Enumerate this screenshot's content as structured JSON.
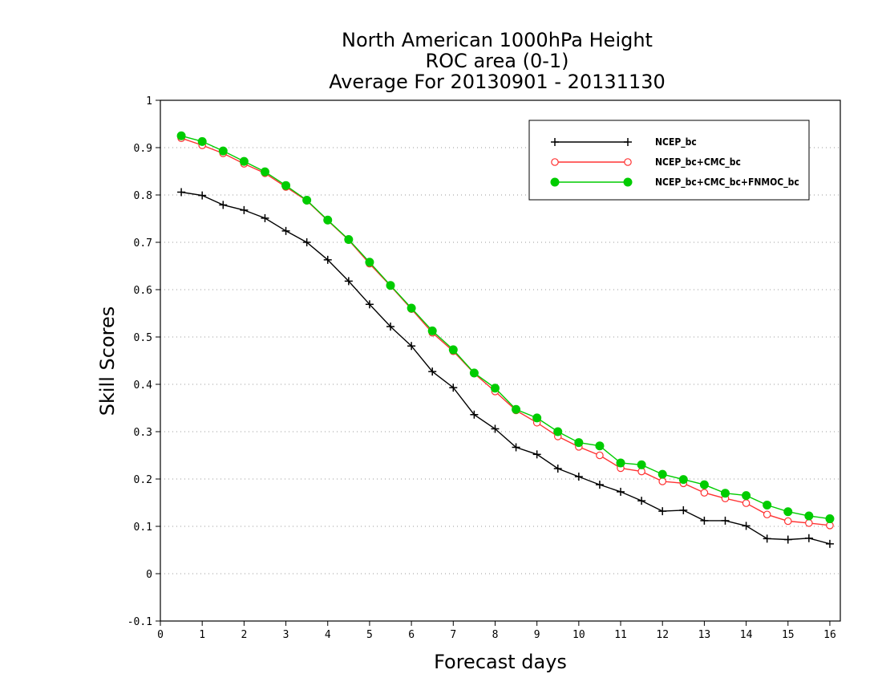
{
  "chart_data": {
    "type": "line",
    "title": [
      "North American 1000hPa Height",
      "ROC area (0-1)",
      "Average For 20130901 - 20131130"
    ],
    "xlabel": "Forecast days",
    "ylabel": "Skill Scores",
    "xlim": [
      0,
      16.25
    ],
    "ylim": [
      -0.1,
      1
    ],
    "xticks": [
      0,
      1,
      2,
      3,
      4,
      5,
      6,
      7,
      8,
      9,
      10,
      11,
      12,
      13,
      14,
      15,
      16
    ],
    "yticks": [
      -0.1,
      0,
      0.1,
      0.2,
      0.3,
      0.4,
      0.5,
      0.6,
      0.7,
      0.8,
      0.9,
      1
    ],
    "ytick_labels": [
      "-0.1",
      "0",
      "0.1",
      "0.2",
      "0.3",
      "0.4",
      "0.5",
      "0.6",
      "0.7",
      "0.8",
      "0.9",
      "1"
    ],
    "grid": "horizontal-dotted",
    "legend_position": "top-right",
    "x": [
      0.5,
      1.0,
      1.5,
      2.0,
      2.5,
      3.0,
      3.5,
      4.0,
      4.5,
      5.0,
      5.5,
      6.0,
      6.5,
      7.0,
      7.5,
      8.0,
      8.5,
      9.0,
      9.5,
      10.0,
      10.5,
      11.0,
      11.5,
      12.0,
      12.5,
      13.0,
      13.5,
      14.0,
      14.5,
      15.0,
      15.5,
      16.0
    ],
    "series": [
      {
        "name": "NCEP_bc",
        "color": "#000000",
        "marker": "plus",
        "values": [
          0.806,
          0.799,
          0.779,
          0.768,
          0.751,
          0.724,
          0.7,
          0.663,
          0.618,
          0.569,
          0.522,
          0.481,
          0.427,
          0.393,
          0.336,
          0.306,
          0.267,
          0.252,
          0.222,
          0.205,
          0.188,
          0.173,
          0.154,
          0.132,
          0.134,
          0.112,
          0.112,
          0.101,
          0.074,
          0.072,
          0.075,
          0.063
        ]
      },
      {
        "name": "NCEP_bc+CMC_bc",
        "color": "#ff3333",
        "marker": "open-circle",
        "values": [
          0.92,
          0.905,
          0.888,
          0.866,
          0.846,
          0.817,
          0.788,
          0.746,
          0.705,
          0.655,
          0.608,
          0.559,
          0.509,
          0.47,
          0.423,
          0.385,
          0.345,
          0.319,
          0.29,
          0.268,
          0.25,
          0.223,
          0.216,
          0.195,
          0.191,
          0.171,
          0.159,
          0.149,
          0.125,
          0.111,
          0.107,
          0.102
        ]
      },
      {
        "name": "NCEP_bc+CMC_bc+FNMOC_bc",
        "color": "#00cc00",
        "marker": "filled-circle",
        "values": [
          0.925,
          0.913,
          0.893,
          0.871,
          0.849,
          0.82,
          0.789,
          0.747,
          0.706,
          0.658,
          0.609,
          0.561,
          0.513,
          0.473,
          0.424,
          0.392,
          0.347,
          0.329,
          0.3,
          0.277,
          0.27,
          0.234,
          0.23,
          0.21,
          0.199,
          0.188,
          0.17,
          0.165,
          0.145,
          0.131,
          0.122,
          0.116
        ]
      }
    ]
  }
}
